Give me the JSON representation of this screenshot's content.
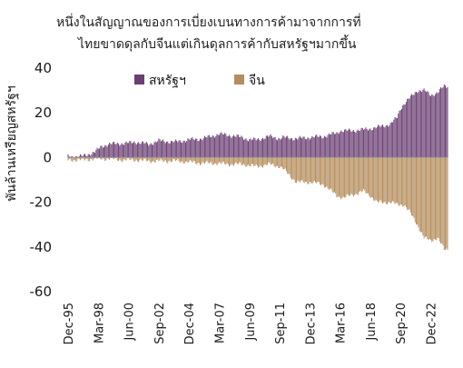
{
  "chart_data": {
    "type": "bar",
    "title_lines": [
      "หนึ่งในสัญญาณของการเบี่ยงเบนทางการค้ามาจากการที่",
      "ไทยขาดดุลกับจีนแต่เกินดุลการค้ากับสหรัฐฯมากขึ้น"
    ],
    "ylabel": "พันล้านเหรียญสหรัฐฯ",
    "xlabel": "",
    "ylim": [
      -60,
      40
    ],
    "y_ticks": [
      40,
      20,
      0,
      -20,
      -40,
      -60
    ],
    "x_tick_labels": [
      "Dec-95",
      "Mar-98",
      "Jun-00",
      "Sep-02",
      "Dec-04",
      "Mar-07",
      "Jun-09",
      "Sep-11",
      "Dec-13",
      "Mar-16",
      "Jun-18",
      "Sep-20",
      "Dec-22"
    ],
    "legend_position": "top-center",
    "grid": false,
    "series": [
      {
        "name": "สหรัฐฯ",
        "color": "#6b3f72",
        "keypoints": [
          [
            "Dec-95",
            0.5
          ],
          [
            "Dec-96",
            0.5
          ],
          [
            "Dec-97",
            2.5
          ],
          [
            "Jun-98",
            5
          ],
          [
            "Dec-98",
            6
          ],
          [
            "Jun-00",
            6.5
          ],
          [
            "Dec-00",
            7
          ],
          [
            "Dec-01",
            6
          ],
          [
            "Sep-02",
            7.5
          ],
          [
            "Dec-03",
            7
          ],
          [
            "Dec-04",
            8
          ],
          [
            "Dec-05",
            8.5
          ],
          [
            "Mar-07",
            10.5
          ],
          [
            "Dec-07",
            10
          ],
          [
            "Dec-08",
            9
          ],
          [
            "Jun-09",
            8
          ],
          [
            "Dec-09",
            8
          ],
          [
            "Dec-10",
            9.5
          ],
          [
            "Sep-11",
            8.5
          ],
          [
            "Dec-11",
            9
          ],
          [
            "Dec-12",
            8.5
          ],
          [
            "Dec-13",
            9
          ],
          [
            "Dec-14",
            9.5
          ],
          [
            "Dec-15",
            11
          ],
          [
            "Mar-16",
            12
          ],
          [
            "Dec-16",
            12
          ],
          [
            "Dec-17",
            12.5
          ],
          [
            "Jun-18",
            13
          ],
          [
            "Dec-18",
            13.5
          ],
          [
            "Dec-19",
            15
          ],
          [
            "Jun-20",
            18
          ],
          [
            "Sep-20",
            22
          ],
          [
            "Dec-20",
            24
          ],
          [
            "Jun-21",
            27
          ],
          [
            "Dec-21",
            30
          ],
          [
            "Jun-22",
            30
          ],
          [
            "Dec-22",
            28
          ],
          [
            "Jun-23",
            29
          ],
          [
            "Dec-23",
            32
          ]
        ]
      },
      {
        "name": "จีน",
        "color": "#b58d5c",
        "keypoints": [
          [
            "Dec-95",
            -1
          ],
          [
            "Dec-96",
            -1
          ],
          [
            "Dec-97",
            -0.5
          ],
          [
            "Dec-98",
            -0.5
          ],
          [
            "Dec-99",
            -1
          ],
          [
            "Dec-00",
            -1
          ],
          [
            "Dec-01",
            -1.5
          ],
          [
            "Dec-02",
            -1.5
          ],
          [
            "Dec-03",
            -1.5
          ],
          [
            "Dec-04",
            -2
          ],
          [
            "Dec-05",
            -2.5
          ],
          [
            "Dec-06",
            -2.5
          ],
          [
            "Dec-07",
            -3
          ],
          [
            "Dec-08",
            -3
          ],
          [
            "Jun-09",
            -3.5
          ],
          [
            "Dec-09",
            -4
          ],
          [
            "Dec-10",
            -3
          ],
          [
            "Sep-11",
            -4
          ],
          [
            "Dec-11",
            -5
          ],
          [
            "Jun-12",
            -8
          ],
          [
            "Dec-12",
            -11
          ],
          [
            "Dec-13",
            -11
          ],
          [
            "Dec-14",
            -12
          ],
          [
            "Dec-15",
            -17
          ],
          [
            "Jun-16",
            -18
          ],
          [
            "Dec-16",
            -17
          ],
          [
            "Dec-17",
            -15
          ],
          [
            "Jun-18",
            -17
          ],
          [
            "Dec-18",
            -20
          ],
          [
            "Dec-19",
            -20
          ],
          [
            "Jun-20",
            -21
          ],
          [
            "Dec-20",
            -21
          ],
          [
            "Jun-21",
            -25
          ],
          [
            "Dec-21",
            -30
          ],
          [
            "Jun-22",
            -36
          ],
          [
            "Dec-22",
            -37
          ],
          [
            "Jun-23",
            -36
          ],
          [
            "Dec-23",
            -41
          ]
        ]
      }
    ]
  }
}
